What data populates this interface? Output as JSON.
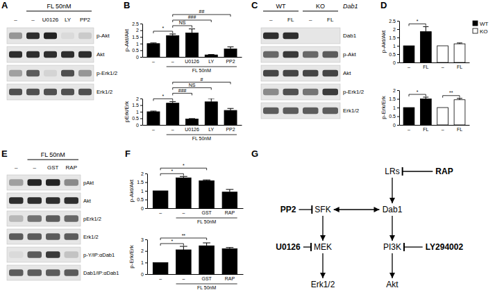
{
  "chart_data": [
    {
      "type": "bar",
      "panel": "B",
      "y_label": "p-Akt/Akt",
      "categories": [
        "–",
        "–",
        "U0126",
        "LY",
        "PP2"
      ],
      "group": {
        "label": "FL 50nM",
        "start": 1,
        "end": 4
      },
      "values": [
        1,
        1.6,
        1.8,
        0.15,
        0.6
      ],
      "errors": [
        0.05,
        0.12,
        0.3,
        0.03,
        0.15
      ],
      "color": "#000000",
      "ylim": [
        0,
        2.5
      ],
      "yticks": [
        0,
        0.5,
        1,
        1.5,
        2,
        2.5
      ],
      "annotations": [
        {
          "text": "*",
          "start": 0,
          "end": 1
        },
        {
          "text": "NS",
          "start": 1,
          "end": 2
        },
        {
          "text": "###",
          "start": 1,
          "end": 3
        },
        {
          "text": "##",
          "start": 1,
          "end": 4
        }
      ]
    },
    {
      "type": "bar",
      "y_label": "pErk/Erk",
      "categories": [
        "–",
        "–",
        "U0126",
        "LY",
        "PP2"
      ],
      "group": {
        "label": "FL 50nM",
        "start": 1,
        "end": 4
      },
      "values": [
        1,
        1.65,
        0.45,
        1.75,
        1.1
      ],
      "errors": [
        0.05,
        0.12,
        0.03,
        0.25,
        0.15
      ],
      "color": "#000000",
      "ylim": [
        0,
        2
      ],
      "yticks": [
        0,
        0.5,
        1,
        1.5,
        2
      ],
      "annotations": [
        {
          "text": "*",
          "start": 0,
          "end": 1
        },
        {
          "text": "###",
          "start": 1,
          "end": 2
        },
        {
          "text": "NS",
          "start": 1,
          "end": 3
        },
        {
          "text": "#",
          "start": 1,
          "end": 4
        }
      ]
    },
    {
      "type": "bar",
      "panel": "D",
      "y_label": "p-Akt/Akt",
      "categories": [
        "–",
        "FL",
        "–",
        "FL"
      ],
      "series": [
        {
          "name": "WT",
          "color": "#000000",
          "values": [
            1,
            1.85,
            null,
            null
          ],
          "errors": [
            null,
            0.3,
            null,
            null
          ]
        },
        {
          "name": "KO",
          "color": "#ffffff",
          "values": [
            null,
            null,
            1,
            1.12
          ],
          "errors": [
            null,
            null,
            null,
            0.05
          ]
        }
      ],
      "legend": "top-right",
      "ylim": [
        0,
        2.5
      ],
      "yticks": [
        0,
        0.5,
        1,
        1.5,
        2,
        2.5
      ],
      "annotations": [
        {
          "text": "*",
          "start": 0,
          "end": 1
        }
      ]
    },
    {
      "type": "bar",
      "y_label": "p-Erk/Erk",
      "categories": [
        "–",
        "FL",
        "–",
        "FL"
      ],
      "values": [
        1,
        1.5,
        1,
        1.45
      ],
      "errors": [
        null,
        0.1,
        null,
        0.08
      ],
      "colors": [
        "#000000",
        "#000000",
        "#ffffff",
        "#ffffff"
      ],
      "ylim": [
        0,
        2
      ],
      "yticks": [
        0,
        0.5,
        1,
        1.5,
        2
      ],
      "annotations": [
        {
          "text": "*",
          "start": 0,
          "end": 1
        },
        {
          "text": "**",
          "start": 2,
          "end": 3
        }
      ]
    },
    {
      "type": "bar",
      "panel": "F",
      "y_label": "p-Akt/Akt",
      "categories": [
        "–",
        "–",
        "GST",
        "RAP"
      ],
      "group": {
        "label": "FL 50nM",
        "start": 1,
        "end": 3
      },
      "values": [
        1,
        1.75,
        1.58,
        0.93
      ],
      "errors": [
        null,
        0.08,
        0.05,
        0.15
      ],
      "color": "#000000",
      "ylim": [
        0,
        2
      ],
      "yticks": [
        0,
        0.5,
        1,
        1.5,
        2
      ],
      "annotations": [
        {
          "text": "*",
          "start": 0,
          "end": 1
        },
        {
          "text": "*",
          "start": 0,
          "end": 2
        }
      ]
    },
    {
      "type": "bar",
      "y_label": "p-Erk/Erk",
      "categories": [
        "–",
        "–",
        "GST",
        "RAP"
      ],
      "group": {
        "label": "FL 50nM",
        "start": 1,
        "end": 3
      },
      "values": [
        1,
        2.1,
        2.45,
        2.2
      ],
      "errors": [
        null,
        0.3,
        0.25,
        0.1
      ],
      "color": "#000000",
      "ylim": [
        0,
        3
      ],
      "yticks": [
        0,
        1,
        2,
        3
      ],
      "annotations": [
        {
          "text": "*",
          "start": 0,
          "end": 1
        },
        {
          "text": "**",
          "start": 0,
          "end": 2
        }
      ]
    }
  ],
  "blots": [
    {
      "panel": "A",
      "headers": [
        {
          "label": "FL 50nM",
          "start": 1,
          "end": 4
        }
      ],
      "lanes": [
        "–",
        "–",
        "U0126",
        "LY",
        "PP2"
      ],
      "rows": [
        {
          "label": "p-Akt",
          "intensity": [
            0.35,
            0.8,
            0.85,
            0.05,
            0.12
          ]
        },
        {
          "label": "Akt",
          "intensity": [
            0.8,
            0.8,
            0.8,
            0.8,
            0.8
          ]
        },
        {
          "label": "p-Erk1/2",
          "intensity": [
            0.3,
            0.6,
            0.08,
            0.65,
            0.35
          ]
        },
        {
          "label": "Erk1/2",
          "intensity": [
            0.65,
            0.65,
            0.65,
            0.65,
            0.65
          ]
        }
      ]
    },
    {
      "panel": "C",
      "headers": [
        {
          "label": "WT",
          "start": 0,
          "end": 1
        },
        {
          "label": "KO",
          "start": 2,
          "end": 3
        }
      ],
      "side_label": "Dab1",
      "lanes": [
        "–",
        "FL",
        "–",
        "FL"
      ],
      "rows": [
        {
          "label": "Dab1",
          "intensity": [
            0.8,
            0.8,
            0,
            0
          ]
        },
        {
          "label": "p-Akt",
          "intensity": [
            0.55,
            0.75,
            0.55,
            0.6
          ]
        },
        {
          "label": "Akt",
          "intensity": [
            0.7,
            0.7,
            0.7,
            0.7
          ]
        },
        {
          "label": "p-Erk1/2",
          "intensity": [
            0.4,
            0.65,
            0.5,
            0.75
          ]
        },
        {
          "label": "Erk1/2",
          "intensity": [
            0.6,
            0.6,
            0.6,
            0.6
          ]
        }
      ]
    },
    {
      "panel": "E",
      "headers": [
        {
          "label": "FL 50nM",
          "start": 1,
          "end": 3
        }
      ],
      "lanes": [
        "–",
        "–",
        "GST",
        "RAP"
      ],
      "rows": [
        {
          "label": "pAkt",
          "intensity": [
            0.3,
            0.85,
            0.85,
            0.4
          ]
        },
        {
          "label": "Akt",
          "intensity": [
            0.8,
            0.8,
            0.8,
            0.8
          ]
        },
        {
          "label": "pErk1/2",
          "intensity": [
            0.2,
            0.5,
            0.6,
            0.55
          ]
        },
        {
          "label": "Erk1/2",
          "intensity": [
            0.6,
            0.6,
            0.6,
            0.6
          ]
        },
        {
          "label": "p-Y/IP:αDab1",
          "intensity": [
            0.05,
            0.6,
            0.75,
            0.15
          ]
        },
        {
          "label": "Dab1/IP:αDab1",
          "intensity": [
            0.6,
            0.6,
            0.6,
            0.6
          ]
        }
      ]
    }
  ],
  "diagram": {
    "panel": "G",
    "nodes": [
      "LRs",
      "RAP",
      "PP2",
      "SFK",
      "Dab1",
      "U0126",
      "MEK",
      "PI3K",
      "LY294002",
      "Erk1/2",
      "Akt"
    ],
    "edges": [
      {
        "from": "RAP",
        "to": "LRs",
        "kind": "inhibits"
      },
      {
        "from": "LRs",
        "to": "Dab1",
        "kind": "activates"
      },
      {
        "from": "PP2",
        "to": "SFK",
        "kind": "inhibits"
      },
      {
        "from": "SFK",
        "to": "Dab1",
        "kind": "reciprocal"
      },
      {
        "from": "SFK",
        "to": "MEK",
        "kind": "activates"
      },
      {
        "from": "U0126",
        "to": "MEK",
        "kind": "inhibits"
      },
      {
        "from": "Dab1",
        "to": "PI3K",
        "kind": "activates"
      },
      {
        "from": "LY294002",
        "to": "PI3K",
        "kind": "inhibits"
      },
      {
        "from": "MEK",
        "to": "Erk1/2",
        "kind": "activates"
      },
      {
        "from": "PI3K",
        "to": "Akt",
        "kind": "activates"
      }
    ]
  }
}
